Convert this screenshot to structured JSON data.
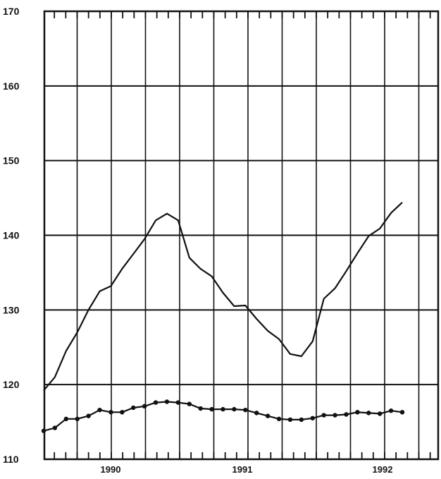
{
  "chart_data": {
    "type": "line",
    "title": "",
    "xlabel": "",
    "ylabel": "",
    "ylim": [
      110,
      170
    ],
    "yticks": [
      110,
      120,
      130,
      140,
      150,
      160,
      170
    ],
    "year_labels": [
      "1990",
      "1991",
      "1992"
    ],
    "grid": true,
    "series": [
      {
        "values": [
          119.2,
          121.0,
          124.5,
          127.0,
          130.0,
          132.5,
          133.2,
          135.5,
          137.5,
          139.5,
          142.0,
          142.9,
          142.0,
          137.0,
          135.5,
          134.5,
          132.3,
          130.5,
          130.6,
          128.8,
          127.2,
          126.1,
          124.1,
          123.8,
          125.8,
          131.5,
          132.9,
          135.2,
          137.6,
          139.9,
          140.9,
          143.0,
          144.4
        ],
        "marker": "none"
      },
      {
        "values": [
          113.8,
          114.2,
          115.4,
          115.4,
          115.8,
          116.6,
          116.3,
          116.3,
          116.9,
          117.1,
          117.6,
          117.7,
          117.6,
          117.4,
          116.8,
          116.7,
          116.7,
          116.7,
          116.6,
          116.2,
          115.8,
          115.4,
          115.3,
          115.3,
          115.5,
          115.9,
          115.9,
          116.0,
          116.3,
          116.2,
          116.1,
          116.5,
          116.3
        ],
        "marker": "dot"
      }
    ]
  }
}
